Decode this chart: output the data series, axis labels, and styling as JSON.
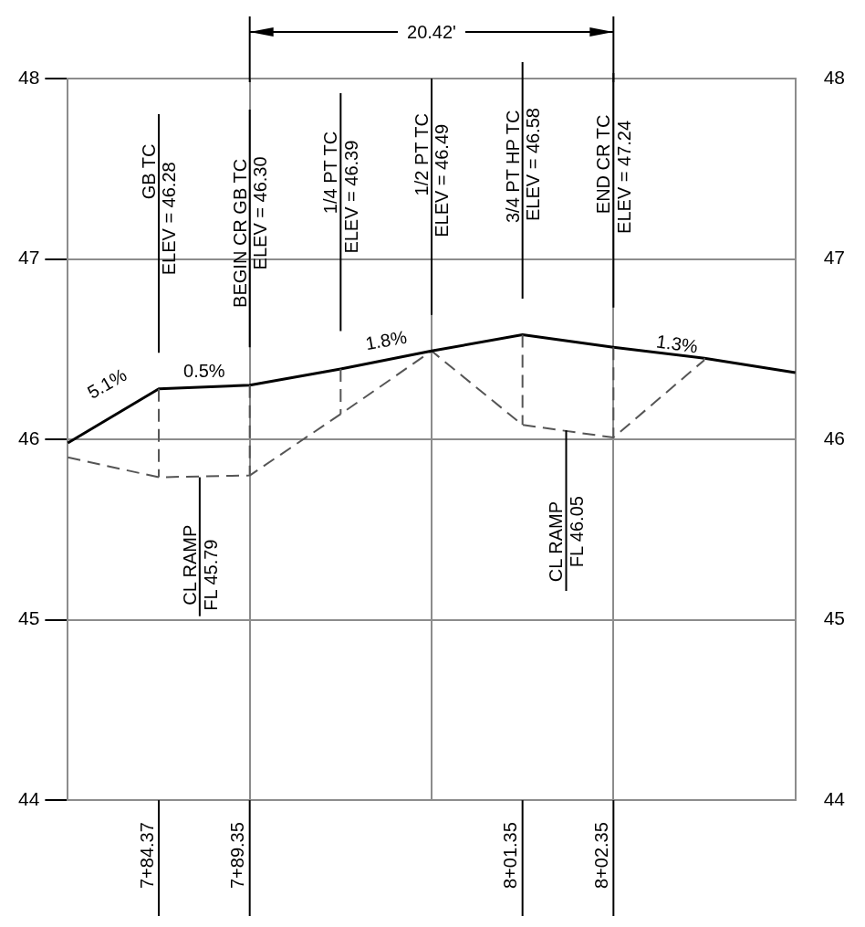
{
  "chart_data": {
    "type": "line",
    "categories": [
      null,
      "7+84.37",
      "7+89.35",
      null,
      null,
      "8+01.35",
      "8+02.35",
      null,
      null
    ],
    "series": [
      {
        "color": "#000000",
        "line_style": "solid",
        "values": [
          45.98,
          46.28,
          46.3,
          46.39,
          46.49,
          46.58,
          46.51,
          46.45,
          46.37
        ]
      },
      {
        "color": "#555555",
        "line_style": "dashed",
        "values": [
          45.9,
          45.79,
          45.8,
          46.14,
          46.49,
          46.08,
          46.01,
          46.44,
          null
        ]
      }
    ],
    "ylim": [
      44,
      48
    ],
    "yticks": [
      44,
      45,
      46,
      47,
      48
    ],
    "y2lim": [
      44,
      48
    ],
    "y2ticks": [
      44,
      45,
      46,
      47,
      48
    ],
    "grid": true,
    "marker": "none",
    "annotations": [
      "5.1%",
      "0.5%",
      "1.8%",
      "1.3%",
      "GB TC",
      "ELEV = 46.28",
      "BEGIN CR GB TC",
      "ELEV = 46.30",
      "1/4 PT TC",
      "ELEV = 46.39",
      "1/2 PT TC",
      "ELEV = 46.49",
      "3/4 PT HP TC",
      "ELEV = 46.58",
      "END CR TC",
      "ELEV = 47.24",
      {
        "text": "CL RAMP\nFL 45.79",
        "y": 45.79
      },
      {
        "text": "CL RAMP\nFL 46.05",
        "y": 46.05
      },
      "20.42'"
    ]
  }
}
